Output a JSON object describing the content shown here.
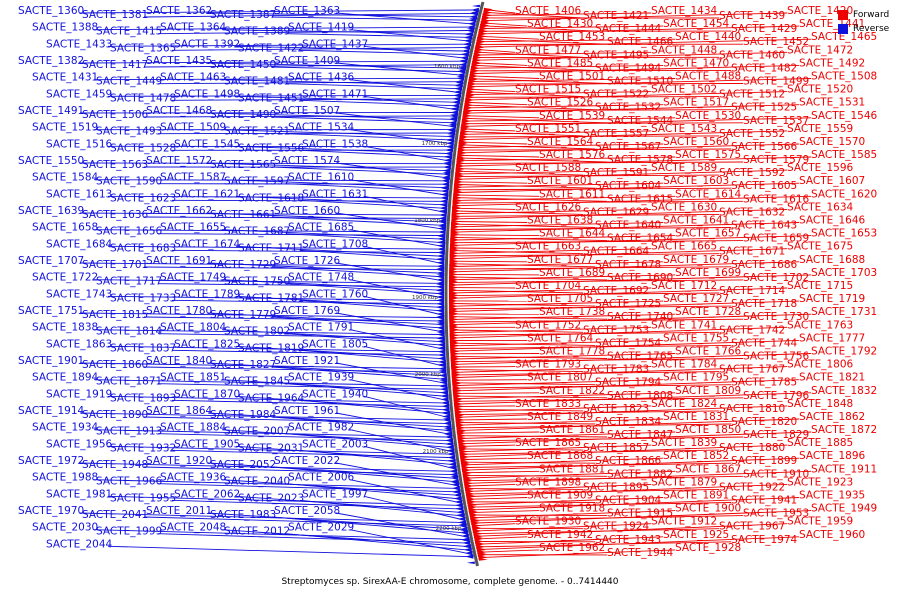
{
  "caption": "Streptomyces sp. SirexAA-E chromosome, complete genome. - 0..7414440",
  "legend": [
    {
      "label": "Forward",
      "color": "#ee0000"
    },
    {
      "label": "Reverse",
      "color": "#1010dd"
    }
  ],
  "colors": {
    "forward": "#ee0000",
    "reverse": "#1010dd",
    "backbone": "#555555"
  },
  "scale_ticks": [
    "1600 kbp",
    "1700 kbp",
    "1800 kbp",
    "1900 kbp",
    "2000 kbp",
    "2100 kbp",
    "2200 kbp"
  ],
  "reverse_genes": [
    "SACTE_1360",
    "SACTE_1381",
    "SACTE_1362",
    "SACTE_1387",
    "SACTE_1363",
    "SACTE_1388",
    "SACTE_1415",
    "SACTE_1364",
    "SACTE_1389",
    "SACTE_1419",
    "SACTE_1433",
    "SACTE_1365",
    "SACTE_1392",
    "SACTE_1422",
    "SACTE_1437",
    "SACTE_1382",
    "SACTE_1417",
    "SACTE_1435",
    "SACTE_1450",
    "SACTE_1409",
    "SACTE_1431",
    "SACTE_1449",
    "SACTE_1463",
    "SACTE_1481",
    "SACTE_1436",
    "SACTE_1459",
    "SACTE_1478",
    "SACTE_1498",
    "SACTE_1451",
    "SACTE_1471",
    "SACTE_1491",
    "SACTE_1506",
    "SACTE_1468",
    "SACTE_1490",
    "SACTE_1507",
    "SACTE_1519",
    "SACTE_1493",
    "SACTE_1509",
    "SACTE_1521",
    "SACTE_1534",
    "SACTE_1516",
    "SACTE_1528",
    "SACTE_1545",
    "SACTE_1556",
    "SACTE_1538",
    "SACTE_1550",
    "SACTE_1563",
    "SACTE_1572",
    "SACTE_1565",
    "SACTE_1574",
    "SACTE_1584",
    "SACTE_1590",
    "SACTE_1587",
    "SACTE_1597",
    "SACTE_1610",
    "SACTE_1613",
    "SACTE_1623",
    "SACTE_1621",
    "SACTE_1618",
    "SACTE_1631",
    "SACTE_1639",
    "SACTE_1636",
    "SACTE_1662",
    "SACTE_1661",
    "SACTE_1660",
    "SACTE_1658",
    "SACTE_1656",
    "SACTE_1655",
    "SACTE_1687",
    "SACTE_1685",
    "SACTE_1684",
    "SACTE_1683",
    "SACTE_1674",
    "SACTE_1711",
    "SACTE_1708",
    "SACTE_1707",
    "SACTE_1701",
    "SACTE_1691",
    "SACTE_1729",
    "SACTE_1726",
    "SACTE_1722",
    "SACTE_1717",
    "SACTE_1749",
    "SACTE_1750",
    "SACTE_1748",
    "SACTE_1743",
    "SACTE_1733",
    "SACTE_1789",
    "SACTE_1781",
    "SACTE_1760",
    "SACTE_1751",
    "SACTE_1815",
    "SACTE_1780",
    "SACTE_1779",
    "SACTE_1769",
    "SACTE_1838",
    "SACTE_1814",
    "SACTE_1804",
    "SACTE_1802",
    "SACTE_1791",
    "SACTE_1863",
    "SACTE_1837",
    "SACTE_1825",
    "SACTE_1819",
    "SACTE_1805",
    "SACTE_1901",
    "SACTE_1860",
    "SACTE_1840",
    "SACTE_1827",
    "SACTE_1921",
    "SACTE_1894",
    "SACTE_1871",
    "SACTE_1851",
    "SACTE_1845",
    "SACTE_1939",
    "SACTE_1919",
    "SACTE_1893",
    "SACTE_1870",
    "SACTE_1964",
    "SACTE_1940",
    "SACTE_1914",
    "SACTE_1890",
    "SACTE_1864",
    "SACTE_1984",
    "SACTE_1961",
    "SACTE_1934",
    "SACTE_1913",
    "SACTE_1884",
    "SACTE_2007",
    "SACTE_1982",
    "SACTE_1956",
    "SACTE_1932",
    "SACTE_1905",
    "SACTE_2031",
    "SACTE_2003",
    "SACTE_1972",
    "SACTE_1948",
    "SACTE_1920",
    "SACTE_2052",
    "SACTE_2022",
    "SACTE_1988",
    "SACTE_1966",
    "SACTE_1936",
    "SACTE_2040",
    "SACTE_2006",
    "SACTE_1981",
    "SACTE_1955",
    "SACTE_2062",
    "SACTE_2023",
    "SACTE_1997",
    "SACTE_1970",
    "SACTE_2041",
    "SACTE_2011",
    "SACTE_1983",
    "SACTE_2058",
    "SACTE_2030",
    "SACTE_1999",
    "SACTE_2048",
    "SACTE_2012",
    "SACTE_2029",
    "SACTE_2044"
  ],
  "forward_genes": [
    "SACTE_1406",
    "SACTE_1421",
    "SACTE_1434",
    "SACTE_1439",
    "SACTE_1420",
    "SACTE_1430",
    "SACTE_1444",
    "SACTE_1454",
    "SACTE_1429",
    "SACTE_1441",
    "SACTE_1453",
    "SACTE_1466",
    "SACTE_1440",
    "SACTE_1452",
    "SACTE_1465",
    "SACTE_1477",
    "SACTE_1495",
    "SACTE_1448",
    "SACTE_1460",
    "SACTE_1472",
    "SACTE_1485",
    "SACTE_1494",
    "SACTE_1470",
    "SACTE_1482",
    "SACTE_1492",
    "SACTE_1501",
    "SACTE_1510",
    "SACTE_1488",
    "SACTE_1499",
    "SACTE_1508",
    "SACTE_1515",
    "SACTE_1522",
    "SACTE_1502",
    "SACTE_1512",
    "SACTE_1520",
    "SACTE_1526",
    "SACTE_1532",
    "SACTE_1517",
    "SACTE_1525",
    "SACTE_1531",
    "SACTE_1539",
    "SACTE_1544",
    "SACTE_1530",
    "SACTE_1537",
    "SACTE_1546",
    "SACTE_1551",
    "SACTE_1557",
    "SACTE_1543",
    "SACTE_1552",
    "SACTE_1559",
    "SACTE_1564",
    "SACTE_1567",
    "SACTE_1560",
    "SACTE_1566",
    "SACTE_1570",
    "SACTE_1576",
    "SACTE_1578",
    "SACTE_1575",
    "SACTE_1579",
    "SACTE_1585",
    "SACTE_1588",
    "SACTE_1591",
    "SACTE_1589",
    "SACTE_1592",
    "SACTE_1596",
    "SACTE_1601",
    "SACTE_1604",
    "SACTE_1603",
    "SACTE_1605",
    "SACTE_1607",
    "SACTE_1611",
    "SACTE_1615",
    "SACTE_1614",
    "SACTE_1616",
    "SACTE_1620",
    "SACTE_1626",
    "SACTE_1629",
    "SACTE_1630",
    "SACTE_1632",
    "SACTE_1634",
    "SACTE_1638",
    "SACTE_1640",
    "SACTE_1641",
    "SACTE_1643",
    "SACTE_1646",
    "SACTE_1644",
    "SACTE_1654",
    "SACTE_1657",
    "SACTE_1659",
    "SACTE_1653",
    "SACTE_1663",
    "SACTE_1664",
    "SACTE_1665",
    "SACTE_1671",
    "SACTE_1675",
    "SACTE_1677",
    "SACTE_1678",
    "SACTE_1679",
    "SACTE_1686",
    "SACTE_1688",
    "SACTE_1689",
    "SACTE_1690",
    "SACTE_1699",
    "SACTE_1702",
    "SACTE_1703",
    "SACTE_1704",
    "SACTE_1692",
    "SACTE_1712",
    "SACTE_1714",
    "SACTE_1715",
    "SACTE_1705",
    "SACTE_1725",
    "SACTE_1727",
    "SACTE_1718",
    "SACTE_1719",
    "SACTE_1738",
    "SACTE_1740",
    "SACTE_1728",
    "SACTE_1730",
    "SACTE_1731",
    "SACTE_1752",
    "SACTE_1753",
    "SACTE_1741",
    "SACTE_1742",
    "SACTE_1763",
    "SACTE_1764",
    "SACTE_1754",
    "SACTE_1755",
    "SACTE_1744",
    "SACTE_1777",
    "SACTE_1778",
    "SACTE_1765",
    "SACTE_1766",
    "SACTE_1756",
    "SACTE_1792",
    "SACTE_1793",
    "SACTE_1783",
    "SACTE_1784",
    "SACTE_1767",
    "SACTE_1806",
    "SACTE_1807",
    "SACTE_1794",
    "SACTE_1795",
    "SACTE_1785",
    "SACTE_1821",
    "SACTE_1822",
    "SACTE_1808",
    "SACTE_1809",
    "SACTE_1796",
    "SACTE_1832",
    "SACTE_1833",
    "SACTE_1823",
    "SACTE_1824",
    "SACTE_1810",
    "SACTE_1848",
    "SACTE_1849",
    "SACTE_1834",
    "SACTE_1831",
    "SACTE_1820",
    "SACTE_1862",
    "SACTE_1861",
    "SACTE_1847",
    "SACTE_1850",
    "SACTE_1829",
    "SACTE_1872",
    "SACTE_1865",
    "SACTE_1857",
    "SACTE_1839",
    "SACTE_1880",
    "SACTE_1885",
    "SACTE_1868",
    "SACTE_1866",
    "SACTE_1852",
    "SACTE_1899",
    "SACTE_1896",
    "SACTE_1881",
    "SACTE_1882",
    "SACTE_1867",
    "SACTE_1910",
    "SACTE_1911",
    "SACTE_1898",
    "SACTE_1895",
    "SACTE_1879",
    "SACTE_1922",
    "SACTE_1923",
    "SACTE_1909",
    "SACTE_1904",
    "SACTE_1891",
    "SACTE_1941",
    "SACTE_1935",
    "SACTE_1918",
    "SACTE_1915",
    "SACTE_1900",
    "SACTE_1953",
    "SACTE_1949",
    "SACTE_1930",
    "SACTE_1924",
    "SACTE_1912",
    "SACTE_1967",
    "SACTE_1959",
    "SACTE_1942",
    "SACTE_1943",
    "SACTE_1925",
    "SACTE_1974",
    "SACTE_1960",
    "SACTE_1962",
    "SACTE_1944",
    "SACTE_1928"
  ]
}
